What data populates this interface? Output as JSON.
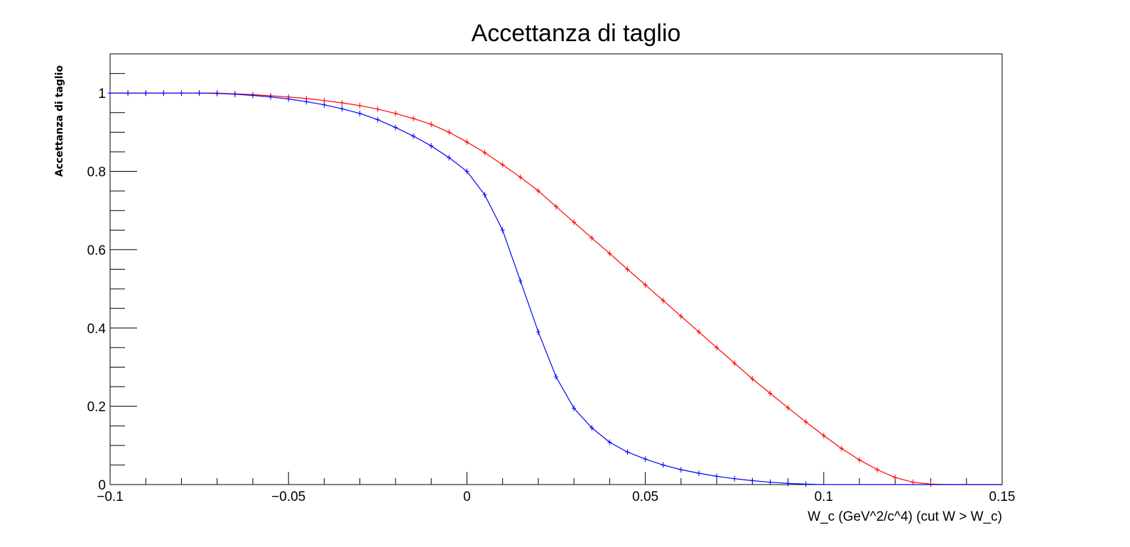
{
  "chart_data": {
    "type": "line",
    "title": "Accettanza di taglio",
    "xlabel": "W_c (GeV^2/c^4) (cut W > W_c)",
    "ylabel": "Accettanza di taglio",
    "xlim": [
      -0.1,
      0.15
    ],
    "ylim": [
      0,
      1.1
    ],
    "x_ticks": [
      -0.1,
      -0.05,
      0,
      0.05,
      0.1,
      0.15
    ],
    "x_tick_labels": [
      "−0.1",
      "−0.05",
      "0",
      "0.05",
      "0.1",
      "0.15"
    ],
    "y_ticks": [
      0,
      0.2,
      0.4,
      0.6,
      0.8,
      1
    ],
    "y_tick_labels": [
      "0",
      "0.2",
      "0.4",
      "0.6",
      "0.8",
      "1"
    ],
    "grid": false,
    "legend": "none",
    "series": [
      {
        "color": "#ff0000",
        "x": [
          -0.1,
          -0.095,
          -0.09,
          -0.085,
          -0.08,
          -0.075,
          -0.07,
          -0.065,
          -0.06,
          -0.055,
          -0.05,
          -0.045,
          -0.04,
          -0.035,
          -0.03,
          -0.025,
          -0.02,
          -0.015,
          -0.01,
          -0.005,
          0,
          0.005,
          0.01,
          0.015,
          0.02,
          0.025,
          0.03,
          0.035,
          0.04,
          0.045,
          0.05,
          0.055,
          0.06,
          0.065,
          0.07,
          0.075,
          0.08,
          0.085,
          0.09,
          0.095,
          0.1,
          0.105,
          0.11,
          0.115,
          0.12,
          0.125,
          0.13,
          0.135,
          0.14,
          0.145,
          0.15
        ],
        "values": [
          1.0,
          1.0,
          1.0,
          1.0,
          1.0,
          1.0,
          1.0,
          0.998,
          0.996,
          0.993,
          0.99,
          0.986,
          0.981,
          0.975,
          0.968,
          0.959,
          0.948,
          0.935,
          0.92,
          0.9,
          0.875,
          0.848,
          0.817,
          0.785,
          0.75,
          0.71,
          0.67,
          0.63,
          0.59,
          0.55,
          0.51,
          0.47,
          0.43,
          0.39,
          0.35,
          0.31,
          0.27,
          0.233,
          0.196,
          0.16,
          0.125,
          0.092,
          0.063,
          0.038,
          0.018,
          0.006,
          0.001,
          0.0,
          0.0,
          0.0,
          0.0
        ]
      },
      {
        "color": "#0000ff",
        "x": [
          -0.1,
          -0.095,
          -0.09,
          -0.085,
          -0.08,
          -0.075,
          -0.07,
          -0.065,
          -0.06,
          -0.055,
          -0.05,
          -0.045,
          -0.04,
          -0.035,
          -0.03,
          -0.025,
          -0.02,
          -0.015,
          -0.01,
          -0.005,
          0,
          0.005,
          0.01,
          0.015,
          0.02,
          0.025,
          0.03,
          0.035,
          0.04,
          0.045,
          0.05,
          0.055,
          0.06,
          0.065,
          0.07,
          0.075,
          0.08,
          0.085,
          0.09,
          0.095,
          0.1,
          0.105,
          0.11,
          0.115,
          0.12,
          0.125,
          0.13,
          0.135,
          0.14,
          0.145,
          0.15
        ],
        "values": [
          1.0,
          1.0,
          1.0,
          1.0,
          1.0,
          1.0,
          0.999,
          0.997,
          0.994,
          0.99,
          0.985,
          0.978,
          0.97,
          0.96,
          0.948,
          0.932,
          0.912,
          0.89,
          0.865,
          0.835,
          0.8,
          0.74,
          0.65,
          0.52,
          0.39,
          0.275,
          0.195,
          0.145,
          0.108,
          0.083,
          0.065,
          0.05,
          0.038,
          0.029,
          0.021,
          0.015,
          0.01,
          0.006,
          0.003,
          0.001,
          0.0,
          0.0,
          0.0,
          0.0,
          0.0,
          0.0,
          0.0,
          0.0,
          0.0,
          0.0,
          0.0
        ]
      }
    ]
  }
}
